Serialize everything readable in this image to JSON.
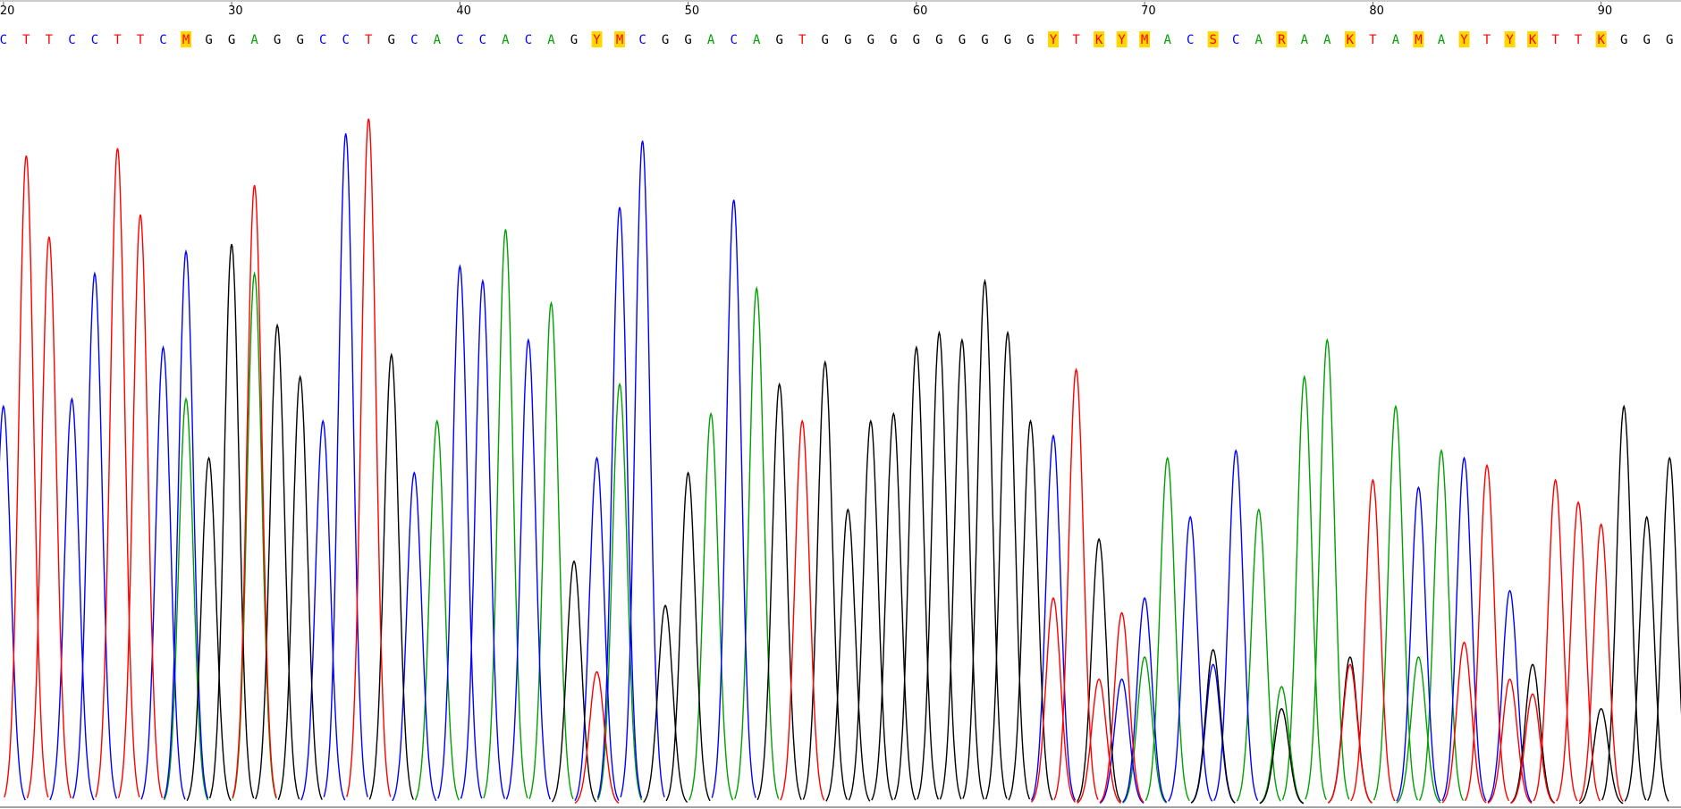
{
  "chart_data": {
    "type": "chromatogram",
    "x": [
      20,
      21,
      22,
      23,
      24,
      25,
      26,
      27,
      28,
      29,
      30,
      31,
      32,
      33,
      34,
      35,
      36,
      37,
      38,
      39,
      40,
      41,
      42,
      43,
      44,
      45,
      46,
      47,
      48,
      49,
      50,
      51,
      52,
      53,
      54,
      55,
      56,
      57,
      58,
      59,
      60,
      61,
      62,
      63,
      64,
      65,
      66,
      67,
      68,
      69,
      70,
      71,
      72,
      73,
      74,
      75,
      76,
      77,
      78,
      79,
      80,
      81,
      82,
      83,
      84,
      85,
      86,
      87,
      88,
      89,
      90,
      91,
      92,
      93
    ],
    "bases": [
      "C",
      "T",
      "T",
      "C",
      "C",
      "T",
      "T",
      "C",
      "M",
      "G",
      "G",
      "A",
      "G",
      "G",
      "C",
      "C",
      "T",
      "G",
      "C",
      "A",
      "C",
      "C",
      "A",
      "C",
      "A",
      "G",
      "Y",
      "M",
      "C",
      "G",
      "G",
      "A",
      "C",
      "A",
      "G",
      "T",
      "G",
      "G",
      "G",
      "G",
      "G",
      "G",
      "G",
      "G",
      "G",
      "G",
      "Y",
      "T",
      "K",
      "Y",
      "M",
      "A",
      "C",
      "S",
      "C",
      "A",
      "R",
      "A",
      "A",
      "K",
      "T",
      "A",
      "M",
      "A",
      "Y",
      "T",
      "Y",
      "K",
      "T",
      "T",
      "K",
      "G",
      "G",
      "G"
    ],
    "xlim": [
      19.85,
      93.5
    ],
    "xticks": [
      20,
      30,
      40,
      50,
      60,
      70,
      80,
      90
    ],
    "ylim": [
      0,
      100
    ],
    "ambiguous_color": "#ff0000",
    "highlight": "#ffd800",
    "series": [
      {
        "name": "A",
        "color": "#00a000",
        "values": [
          null,
          null,
          null,
          null,
          null,
          null,
          null,
          null,
          55,
          null,
          null,
          72,
          null,
          null,
          null,
          null,
          null,
          null,
          null,
          52,
          null,
          null,
          78,
          null,
          68,
          null,
          null,
          57,
          null,
          null,
          null,
          53,
          null,
          70,
          null,
          null,
          null,
          null,
          null,
          null,
          null,
          null,
          null,
          null,
          null,
          null,
          null,
          null,
          null,
          null,
          20,
          47,
          null,
          null,
          null,
          40,
          16,
          58,
          63,
          null,
          null,
          54,
          20,
          48,
          null,
          null,
          null,
          null,
          null,
          null,
          null,
          null,
          null,
          null
        ]
      },
      {
        "name": "C",
        "color": "#0000ff",
        "values": [
          54,
          null,
          null,
          55,
          72,
          null,
          null,
          62,
          75,
          null,
          null,
          null,
          null,
          null,
          52,
          91,
          null,
          null,
          45,
          null,
          73,
          71,
          null,
          63,
          null,
          null,
          47,
          81,
          90,
          null,
          null,
          null,
          82,
          null,
          null,
          null,
          null,
          null,
          null,
          null,
          null,
          null,
          null,
          null,
          null,
          null,
          50,
          null,
          null,
          17,
          28,
          null,
          39,
          19,
          48,
          null,
          null,
          null,
          null,
          null,
          null,
          null,
          43,
          null,
          47,
          null,
          29,
          null,
          null,
          null,
          null,
          null,
          null,
          null
        ]
      },
      {
        "name": "G",
        "color": "#000000",
        "values": [
          null,
          null,
          null,
          null,
          null,
          null,
          null,
          null,
          null,
          47,
          76,
          null,
          65,
          58,
          null,
          null,
          null,
          61,
          null,
          null,
          null,
          null,
          null,
          null,
          null,
          33,
          null,
          null,
          null,
          27,
          45,
          null,
          null,
          null,
          57,
          null,
          60,
          40,
          52,
          53,
          62,
          64,
          63,
          71,
          64,
          52,
          null,
          null,
          36,
          null,
          null,
          null,
          null,
          21,
          null,
          null,
          13,
          null,
          null,
          20,
          null,
          null,
          null,
          null,
          null,
          null,
          null,
          19,
          null,
          null,
          13,
          54,
          39,
          47
        ]
      },
      {
        "name": "T",
        "color": "#ff0000",
        "values": [
          null,
          88,
          77,
          null,
          null,
          89,
          80,
          null,
          null,
          null,
          null,
          84,
          null,
          null,
          null,
          null,
          93,
          null,
          null,
          null,
          null,
          null,
          null,
          null,
          null,
          null,
          18,
          null,
          null,
          null,
          null,
          null,
          null,
          null,
          null,
          52,
          null,
          null,
          null,
          null,
          null,
          null,
          null,
          null,
          null,
          null,
          28,
          59,
          17,
          26,
          null,
          null,
          null,
          null,
          null,
          null,
          null,
          null,
          null,
          19,
          44,
          null,
          null,
          null,
          22,
          46,
          17,
          15,
          44,
          41,
          38,
          null,
          null,
          null
        ]
      }
    ]
  }
}
